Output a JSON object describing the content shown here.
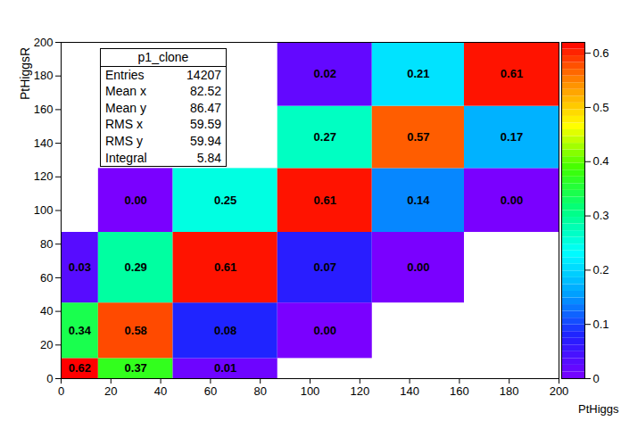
{
  "chart_data": {
    "type": "heatmap",
    "x_label": "PtHiggs",
    "y_label": "PtHiggsR",
    "xlim": [
      0,
      200
    ],
    "xticks": [
      0,
      20,
      40,
      60,
      80,
      100,
      120,
      140,
      160,
      180,
      200
    ],
    "ylim": [
      0,
      200
    ],
    "yticks": [
      0,
      20,
      40,
      60,
      80,
      100,
      120,
      140,
      160,
      180,
      200
    ],
    "data_labels": true,
    "cells": [
      {
        "x0": 0,
        "x1": 15,
        "y0": 0,
        "y1": 12,
        "value": 0.62,
        "label": "0.62"
      },
      {
        "x0": 15,
        "x1": 45,
        "y0": 0,
        "y1": 12,
        "value": 0.37,
        "label": "0.37"
      },
      {
        "x0": 45,
        "x1": 87,
        "y0": 0,
        "y1": 12,
        "value": 0.01,
        "label": "0.01"
      },
      {
        "x0": 0,
        "x1": 15,
        "y0": 12,
        "y1": 45,
        "value": 0.34,
        "label": "0.34"
      },
      {
        "x0": 15,
        "x1": 45,
        "y0": 12,
        "y1": 45,
        "value": 0.58,
        "label": "0.58"
      },
      {
        "x0": 45,
        "x1": 87,
        "y0": 12,
        "y1": 45,
        "value": 0.08,
        "label": "0.08"
      },
      {
        "x0": 87,
        "x1": 125,
        "y0": 12,
        "y1": 45,
        "value": 0,
        "label": "0.00"
      },
      {
        "x0": 0,
        "x1": 15,
        "y0": 45,
        "y1": 87,
        "value": 0.03,
        "label": "0.03"
      },
      {
        "x0": 15,
        "x1": 45,
        "y0": 45,
        "y1": 87,
        "value": 0.29,
        "label": "0.29"
      },
      {
        "x0": 45,
        "x1": 87,
        "y0": 45,
        "y1": 87,
        "value": 0.61,
        "label": "0.61"
      },
      {
        "x0": 87,
        "x1": 125,
        "y0": 45,
        "y1": 87,
        "value": 0.07,
        "label": "0.07"
      },
      {
        "x0": 125,
        "x1": 162,
        "y0": 45,
        "y1": 87,
        "value": 0,
        "label": "0.00"
      },
      {
        "x0": 15,
        "x1": 45,
        "y0": 87,
        "y1": 125,
        "value": 0,
        "label": "0.00"
      },
      {
        "x0": 45,
        "x1": 87,
        "y0": 87,
        "y1": 125,
        "value": 0.25,
        "label": "0.25"
      },
      {
        "x0": 87,
        "x1": 125,
        "y0": 87,
        "y1": 125,
        "value": 0.61,
        "label": "0.61"
      },
      {
        "x0": 125,
        "x1": 162,
        "y0": 87,
        "y1": 125,
        "value": 0.14,
        "label": "0.14"
      },
      {
        "x0": 162,
        "x1": 200,
        "y0": 87,
        "y1": 125,
        "value": 0,
        "label": "0.00"
      },
      {
        "x0": 87,
        "x1": 125,
        "y0": 125,
        "y1": 162,
        "value": 0.27,
        "label": "0.27"
      },
      {
        "x0": 125,
        "x1": 162,
        "y0": 125,
        "y1": 162,
        "value": 0.57,
        "label": "0.57"
      },
      {
        "x0": 162,
        "x1": 200,
        "y0": 125,
        "y1": 162,
        "value": 0.17,
        "label": "0.17"
      },
      {
        "x0": 87,
        "x1": 125,
        "y0": 162,
        "y1": 200,
        "value": 0.02,
        "label": "0.02"
      },
      {
        "x0": 125,
        "x1": 162,
        "y0": 162,
        "y1": 200,
        "value": 0.21,
        "label": "0.21"
      },
      {
        "x0": 162,
        "x1": 200,
        "y0": 162,
        "y1": 200,
        "value": 0.61,
        "label": "0.61"
      }
    ],
    "colorbar": {
      "range": [
        0,
        0.62
      ],
      "ticks": [
        0,
        0.1,
        0.2,
        0.3,
        0.4,
        0.5,
        0.6
      ]
    },
    "stats": {
      "title": "p1_clone",
      "rows": [
        {
          "label": "Entries",
          "value": "14207"
        },
        {
          "label": "Mean x",
          "value": "82.52"
        },
        {
          "label": "Mean y",
          "value": "86.47"
        },
        {
          "label": "RMS x",
          "value": "59.59"
        },
        {
          "label": "RMS y",
          "value": "59.94"
        },
        {
          "label": "Integral",
          "value": "5.84"
        }
      ]
    }
  }
}
